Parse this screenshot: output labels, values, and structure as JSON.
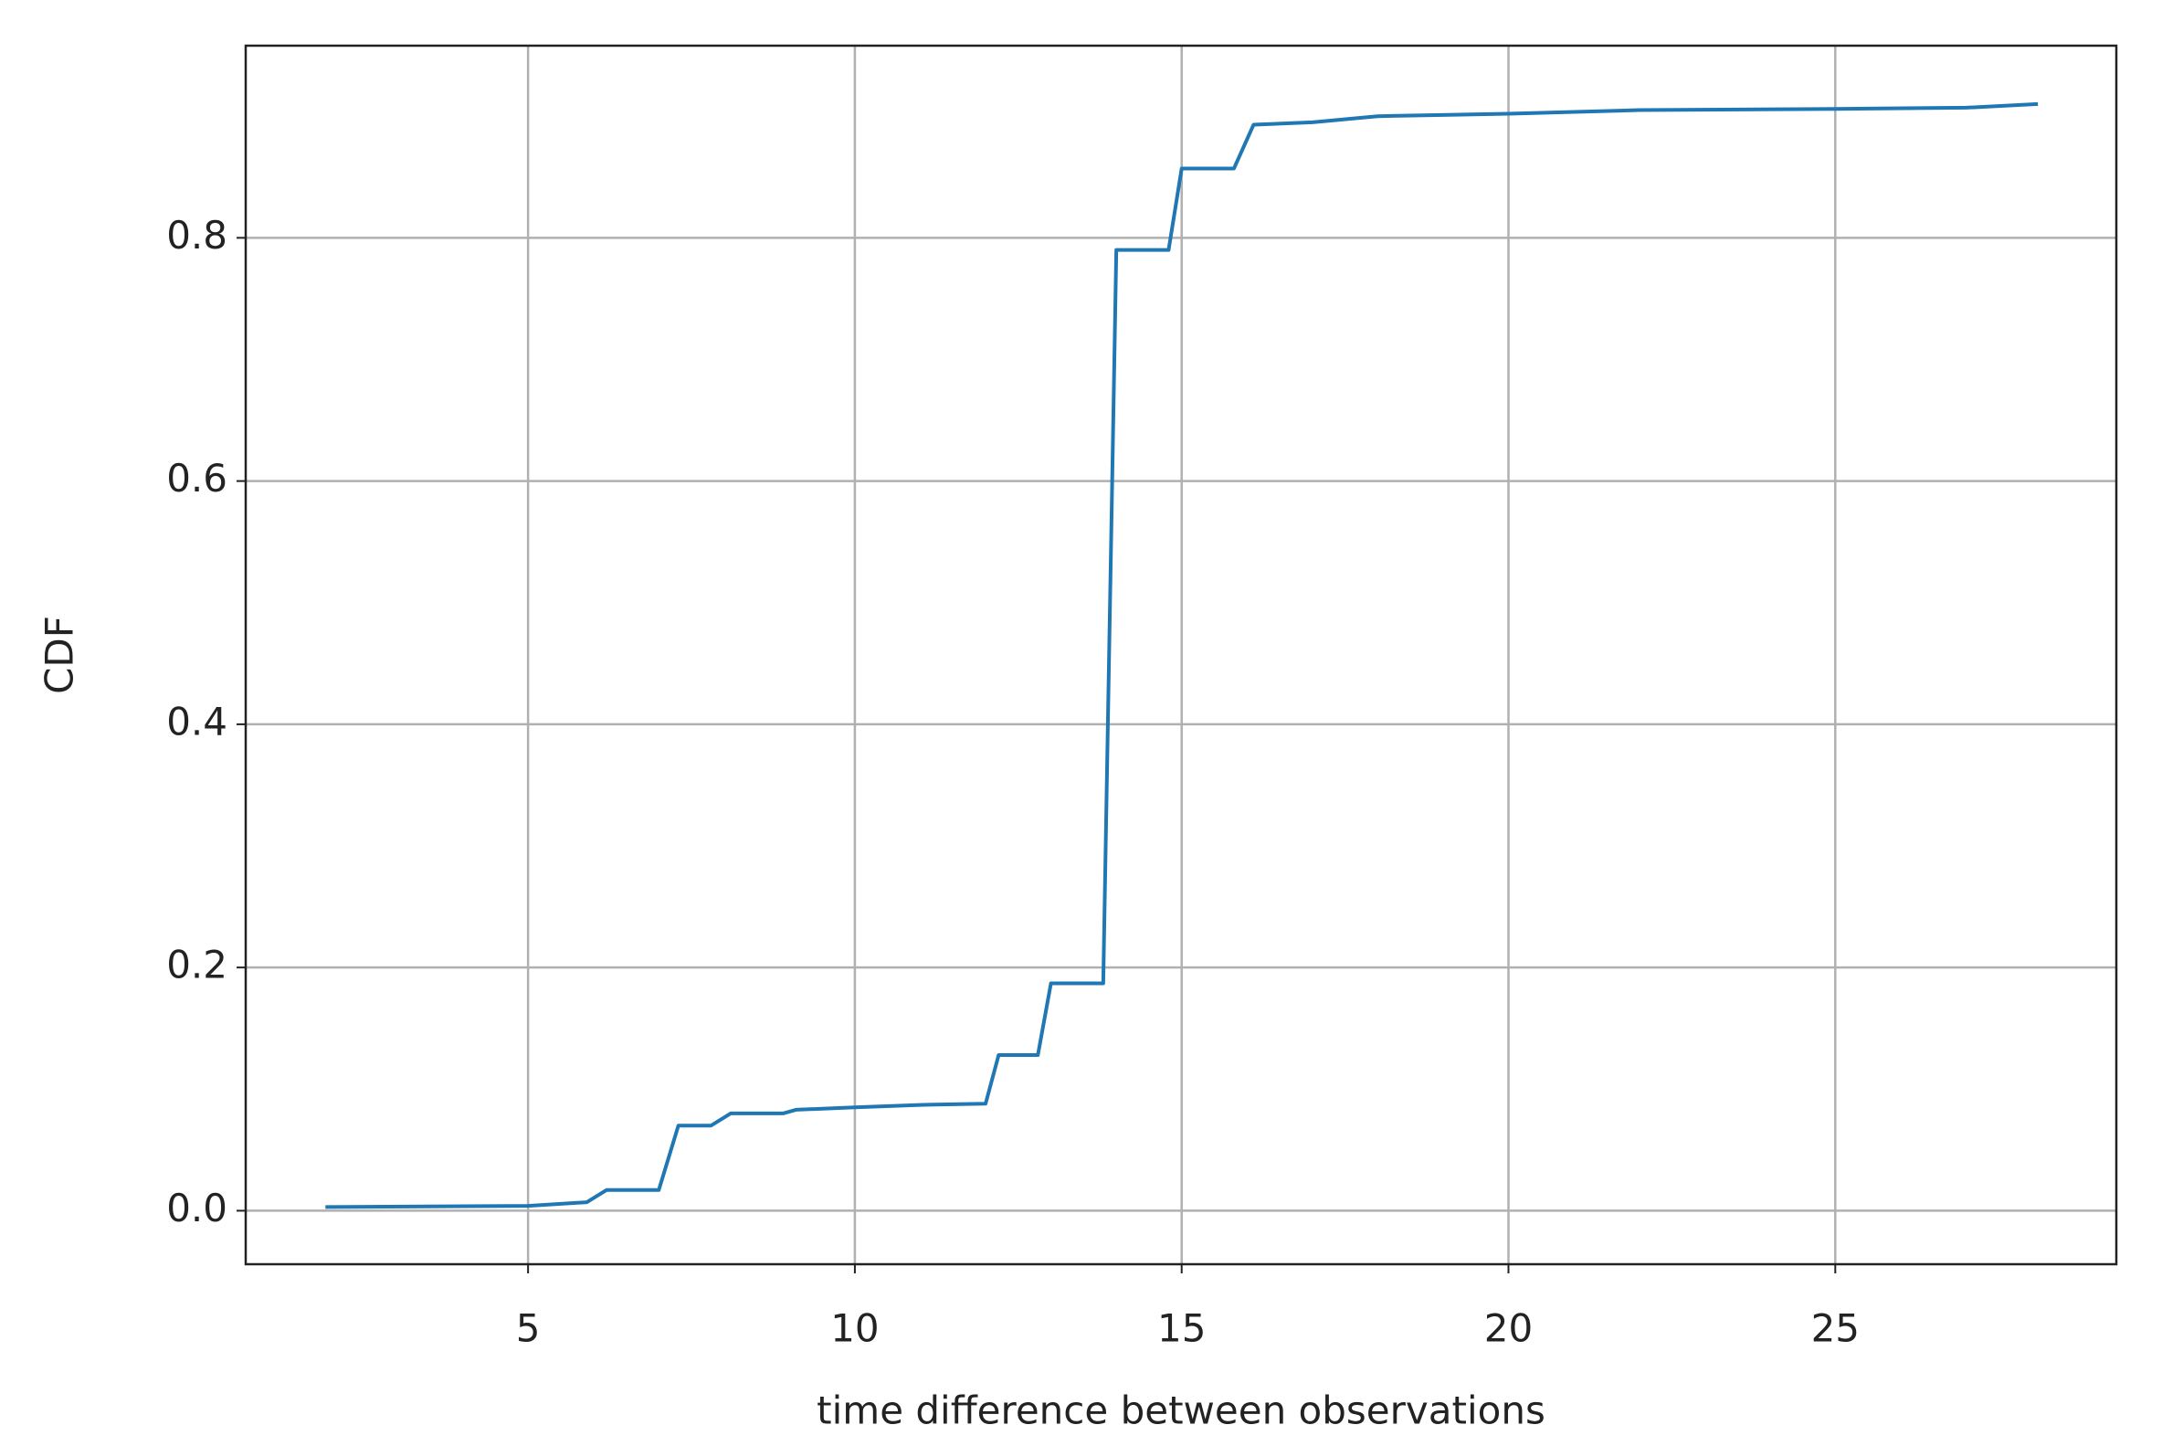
{
  "chart_data": {
    "type": "line",
    "xlabel": "time difference between observations",
    "ylabel": "CDF",
    "x": [
      1.9,
      5.0,
      5.9,
      6.2,
      7.0,
      7.3,
      7.8,
      8.1,
      8.9,
      9.1,
      10.0,
      11.0,
      12.0,
      12.2,
      12.8,
      13.0,
      13.8,
      14.0,
      14.8,
      15.0,
      15.8,
      16.1,
      17.0,
      18.0,
      20.0,
      22.0,
      25.0,
      27.0,
      28.1
    ],
    "series": [
      {
        "color": "#1f77b4",
        "values": [
          0.003,
          0.004,
          0.007,
          0.017,
          0.017,
          0.07,
          0.07,
          0.08,
          0.08,
          0.083,
          0.085,
          0.087,
          0.088,
          0.128,
          0.128,
          0.187,
          0.187,
          0.79,
          0.79,
          0.857,
          0.857,
          0.893,
          0.895,
          0.9,
          0.902,
          0.905,
          0.906,
          0.907,
          0.91
        ]
      }
    ],
    "xlim": [
      0.68,
      29.3
    ],
    "ylim": [
      -0.044,
      0.958
    ],
    "xticks": [
      5,
      10,
      15,
      20,
      25
    ],
    "yticks": [
      {
        "value": 0,
        "label": "0.0"
      },
      {
        "value": 0.2,
        "label": "0.2"
      },
      {
        "value": 0.4,
        "label": "0.4"
      },
      {
        "value": 0.6,
        "label": "0.6"
      },
      {
        "value": 0.8,
        "label": "0.8"
      }
    ],
    "grid": true
  }
}
